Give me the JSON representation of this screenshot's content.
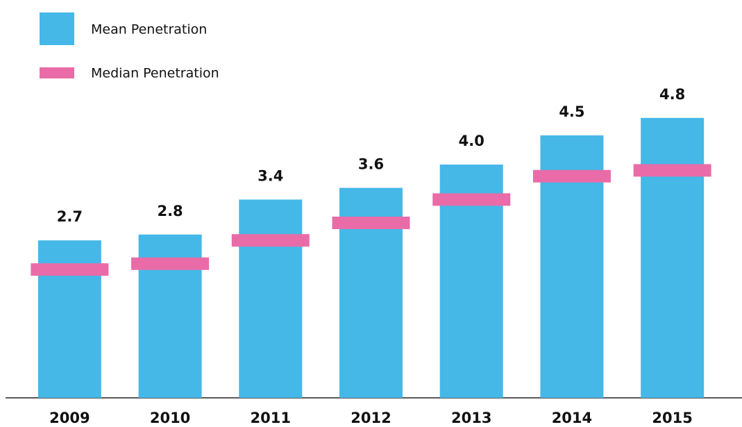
{
  "chart_data": {
    "type": "bar",
    "categories": [
      "2009",
      "2010",
      "2011",
      "2012",
      "2013",
      "2014",
      "2015"
    ],
    "series": [
      {
        "name": "Mean Penetration",
        "color": "#45b8e8",
        "mark": "bar",
        "values": [
          2.7,
          2.8,
          3.4,
          3.6,
          4.0,
          4.5,
          4.8
        ],
        "value_labels": [
          "2.7",
          "2.8",
          "3.4",
          "3.6",
          "4.0",
          "4.5",
          "4.8"
        ]
      },
      {
        "name": "Median Penetration",
        "color": "#e96ca8",
        "mark": "dash",
        "values": [
          2.2,
          2.3,
          2.7,
          3.0,
          3.4,
          3.8,
          3.9
        ]
      }
    ],
    "ylim": [
      0,
      5
    ]
  }
}
